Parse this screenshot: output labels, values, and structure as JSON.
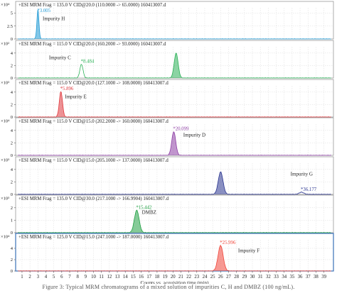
{
  "chart_data": {
    "type": "line",
    "xlabel": "Counts vs. acquisition time (min)",
    "x_ticks": [
      1,
      2,
      3,
      4,
      5,
      6,
      7,
      8,
      9,
      10,
      11,
      12,
      13,
      14,
      15,
      16,
      17,
      18,
      19,
      20,
      21,
      22,
      23,
      24,
      25,
      26,
      27,
      28,
      29,
      30,
      31,
      32,
      33,
      34,
      35,
      36,
      37,
      38,
      39
    ],
    "xlim": [
      0.2,
      40.2
    ],
    "grid": true,
    "panels": [
      {
        "header": "+ESI MRM Frag = 135.0 V CID@20.0 (110.0000 -> 65.0000) 160413007.d",
        "exponent": "×10⁴",
        "ylim": [
          0,
          6
        ],
        "y_ticks": [
          "0",
          "2.5",
          "5"
        ],
        "y_tick_values": [
          0,
          2.5,
          5
        ],
        "color": "#1f9ad6",
        "peaks": [
          {
            "rt": 3.005,
            "height": 5.6,
            "width": 0.13
          }
        ],
        "peak_labels": [
          {
            "text": "*3.005",
            "x": 3.005
          }
        ],
        "compound": {
          "text": "Impurity H",
          "x": 3.6
        }
      },
      {
        "header": "+ESI MRM Frag = 115.0 V CID@20.0 (160.2000 -> 93.0000) 160413007.d",
        "exponent": "×10²",
        "ylim": [
          0,
          5
        ],
        "y_ticks": [
          "0",
          "2",
          "4"
        ],
        "y_tick_values": [
          0,
          2,
          4
        ],
        "color": "#2bb157",
        "peaks": [
          {
            "rt": 8.484,
            "height": 2.2,
            "width": 0.2
          },
          {
            "rt": 20.4,
            "height": 4.0,
            "width": 0.25
          }
        ],
        "peak_labels": [
          {
            "text": "*8.484",
            "x": 8.484
          }
        ],
        "compound": {
          "text": "Impurity C",
          "x": 4.4
        }
      },
      {
        "header": "+ESI MRM Frag = 115.0 V CID@20.0 (127.1000 -> 108.0000) 160413007.d",
        "exponent": "×10³",
        "ylim": [
          0,
          5
        ],
        "y_ticks": [
          "0",
          "2",
          "4"
        ],
        "y_tick_values": [
          0,
          2,
          4
        ],
        "color": "#e0393e",
        "peaks": [
          {
            "rt": 5.896,
            "height": 4.1,
            "width": 0.2
          }
        ],
        "peak_labels": [
          {
            "text": "*5.896",
            "x": 5.896
          }
        ],
        "compound": {
          "text": "Impurity E",
          "x": 6.4
        }
      },
      {
        "header": "+ESI MRM Frag = 115.0 V CID@15.0 (202.2000 -> 160.0000) 160413007.d",
        "exponent": "×10⁴",
        "ylim": [
          0,
          5
        ],
        "y_ticks": [
          "0",
          "2",
          "4"
        ],
        "y_tick_values": [
          0,
          2,
          4
        ],
        "color": "#8e3fa5",
        "peaks": [
          {
            "rt": 20.099,
            "height": 3.8,
            "width": 0.25
          }
        ],
        "peak_labels": [
          {
            "text": "*20.099",
            "x": 20.099
          }
        ],
        "compound": {
          "text": "Impurity D",
          "x": 21.3
        }
      },
      {
        "header": "+ESI MRM Frag = 115.0 V CID@15.0 (205.1000 -> 137.0000) 160413007.d",
        "exponent": "×10³",
        "ylim": [
          0,
          5
        ],
        "y_ticks": [
          "0",
          "2",
          "4"
        ],
        "y_tick_values": [
          0,
          2,
          4
        ],
        "color": "#2a3590",
        "peaks": [
          {
            "rt": 26.0,
            "height": 3.6,
            "width": 0.3
          },
          {
            "rt": 36.177,
            "height": 0.35,
            "width": 0.3
          }
        ],
        "peak_labels": [
          {
            "text": "*36.177",
            "x": 36.177
          }
        ],
        "compound": {
          "text": "Impurity G",
          "x": 34.8
        }
      },
      {
        "header": "+ESI MRM Frag = 135.0 V CID@30.0 (217.1000 -> 166.9904) 160413007.d",
        "exponent": "×10³",
        "ylim": [
          0,
          2.5
        ],
        "y_ticks": [
          "0",
          "1",
          "2"
        ],
        "y_tick_values": [
          0,
          1,
          2
        ],
        "color": "#21a144",
        "peaks": [
          {
            "rt": 15.442,
            "height": 1.8,
            "width": 0.3
          }
        ],
        "peak_labels": [
          {
            "text": "*15.442",
            "x": 15.442
          }
        ],
        "compound": {
          "text": "DMBZ",
          "x": 16.1
        }
      },
      {
        "header": "+ESI MRM Frag = 125.0 V CID@15.0 (247.1000 -> 187.0000) 160413007.d",
        "exponent": "×10⁴",
        "ylim": [
          0,
          5.5
        ],
        "y_ticks": [
          "0",
          "2",
          "4"
        ],
        "y_tick_values": [
          0,
          2,
          4
        ],
        "color": "#f0463a",
        "peaks": [
          {
            "rt": 25.996,
            "height": 4.5,
            "width": 0.32
          }
        ],
        "peak_labels": [
          {
            "text": "*25.996",
            "x": 25.996
          }
        ],
        "compound": {
          "text": "Impurity F",
          "x": 28.2
        }
      }
    ]
  },
  "caption": "Figure 3: Typical MRM chromatograms of a mixed solution of impurities C, H and DMBZ (100 ng/mL)."
}
